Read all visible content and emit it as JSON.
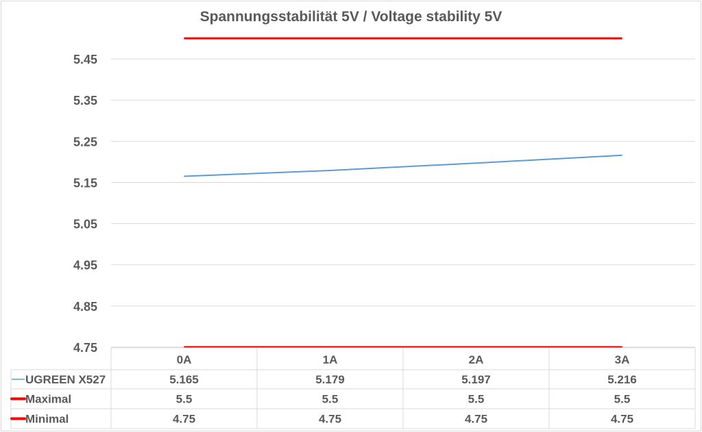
{
  "chart_data": {
    "type": "line",
    "title": "Spannungsstabilität 5V / Voltage stability 5V",
    "categories": [
      "0A",
      "1A",
      "2A",
      "3A"
    ],
    "ylim": [
      4.75,
      5.5
    ],
    "yticks": [
      "4.75",
      "4.85",
      "4.95",
      "5.05",
      "5.15",
      "5.25",
      "5.35",
      "5.45"
    ],
    "grid": true,
    "legend": "data-table-below",
    "series": [
      {
        "name": "UGREEN X527",
        "values": [
          5.165,
          5.179,
          5.197,
          5.216
        ],
        "labels": [
          "5.165",
          "5.179",
          "5.197",
          "5.216"
        ],
        "color": "#5b9bd5"
      },
      {
        "name": "Maximal",
        "values": [
          5.5,
          5.5,
          5.5,
          5.5
        ],
        "labels": [
          "5.5",
          "5.5",
          "5.5",
          "5.5"
        ],
        "color": "#ff0000"
      },
      {
        "name": "Minimal",
        "values": [
          4.75,
          4.75,
          4.75,
          4.75
        ],
        "labels": [
          "4.75",
          "4.75",
          "4.75",
          "4.75"
        ],
        "color": "#ff0000"
      }
    ]
  }
}
